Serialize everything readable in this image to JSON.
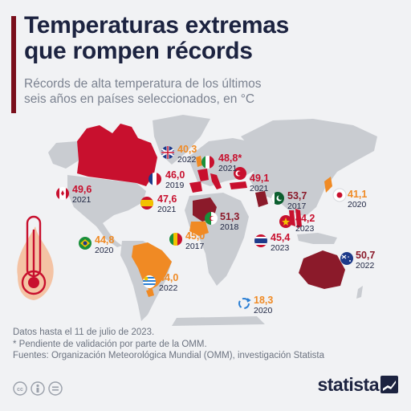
{
  "title_line1": "Temperaturas extremas",
  "title_line2": "que rompen récords",
  "subtitle_line1": "Récords de alta temperatura de los últimos",
  "subtitle_line2": "seis años en países seleccionados, en °C",
  "notes": {
    "line1": "Datos hasta el 11 de julio de 2023.",
    "line2": "* Pendiente de validación por parte de la OMM.",
    "line3": "Fuentes: Organización Meteorológica Mundial (OMM), investigación Statista"
  },
  "brand": "statista",
  "colors": {
    "red": "#c8102e",
    "orange": "#f08a24",
    "blue": "#2b7fd4",
    "dark": "#1c2340",
    "accent": "#7a0f1b",
    "map_grey": "#c9ccd1",
    "highlight": "#c8102e",
    "highlight_dark": "#8b1a2a"
  },
  "icons": [
    "thermometer-icon",
    "cc-icon",
    "person-icon",
    "equals-icon",
    "statista-logo-icon"
  ],
  "chart_data": {
    "type": "map",
    "title": "Temperaturas extremas que rompen récords",
    "unit": "°C",
    "records": [
      {
        "country": "Reino Unido",
        "flag": "uk",
        "value_text": "40,3",
        "value": 40.3,
        "year": "2022",
        "color_class": "orange"
      },
      {
        "country": "Italia",
        "flag": "it",
        "value_text": "48,8*",
        "value": 48.8,
        "year": "2021",
        "color_class": "red"
      },
      {
        "country": "Francia",
        "flag": "fr",
        "value_text": "46,0",
        "value": 46.0,
        "year": "2019",
        "color_class": "red"
      },
      {
        "country": "Turquía",
        "flag": "tr",
        "value_text": "49,1",
        "value": 49.1,
        "year": "2021",
        "color_class": "red"
      },
      {
        "country": "Canadá",
        "flag": "ca",
        "value_text": "49,6",
        "value": 49.6,
        "year": "2021",
        "color_class": "red"
      },
      {
        "country": "España",
        "flag": "es",
        "value_text": "47,6",
        "value": 47.6,
        "year": "2021",
        "color_class": "red"
      },
      {
        "country": "Pakistán",
        "flag": "pk",
        "value_text": "53,7",
        "value": 53.7,
        "year": "2017",
        "color_class": "red"
      },
      {
        "country": "Japón",
        "flag": "jp",
        "value_text": "41,1",
        "value": 41.1,
        "year": "2020",
        "color_class": "orange"
      },
      {
        "country": "Argelia",
        "flag": "dz",
        "value_text": "51,3",
        "value": 51.3,
        "year": "2018",
        "color_class": "red"
      },
      {
        "country": "Vietnam",
        "flag": "vn",
        "value_text": "44,2",
        "value": 44.2,
        "year": "2023",
        "color_class": "red"
      },
      {
        "country": "Brasil",
        "flag": "br",
        "value_text": "44,8",
        "value": 44.8,
        "year": "2020",
        "color_class": "orange"
      },
      {
        "country": "Malí",
        "flag": "ml",
        "value_text": "45,0",
        "value": 45.0,
        "year": "2017",
        "color_class": "orange"
      },
      {
        "country": "Tailandia",
        "flag": "th",
        "value_text": "45,4",
        "value": 45.4,
        "year": "2023",
        "color_class": "red"
      },
      {
        "country": "Australia",
        "flag": "au",
        "value_text": "50,7",
        "value": 50.7,
        "year": "2022",
        "color_class": "red"
      },
      {
        "country": "Uruguay",
        "flag": "uy",
        "value_text": "44,0",
        "value": 44.0,
        "year": "2022",
        "color_class": "orange"
      },
      {
        "country": "Antártida",
        "flag": "aq",
        "value_text": "18,3",
        "value": 18.3,
        "year": "2020",
        "color_class": "orange"
      }
    ]
  }
}
